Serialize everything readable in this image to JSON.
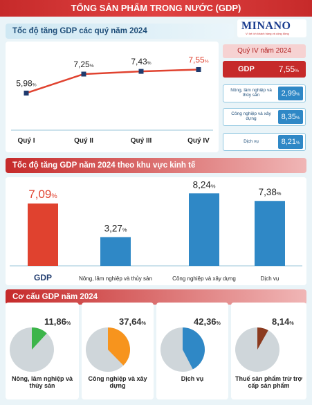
{
  "header": {
    "title": "TỔNG SẢN PHẨM TRONG NƯỚC (GDP)"
  },
  "logo": {
    "name": "MINANO",
    "tagline": "Vì lợi ích khách hàng và cộng đồng"
  },
  "quarter_section": {
    "title": "Tốc độ tăng GDP các quý năm 2024"
  },
  "quarter_panel": {
    "title": "Quý IV năm 2024",
    "gdp_label": "GDP",
    "gdp_value": "7,55",
    "rows": [
      {
        "label": "Nông, lâm nghiệp và thủy sản",
        "value": "2,99"
      },
      {
        "label": "Công nghiệp và xây dựng",
        "value": "8,35"
      },
      {
        "label": "Dịch vụ",
        "value": "8,21"
      }
    ]
  },
  "sector_section": {
    "title": "Tốc độ tăng GDP năm 2024 theo khu vực kinh tế"
  },
  "structure_section": {
    "title": "Cơ cấu GDP năm 2024"
  },
  "percent_sign": "%",
  "colors": {
    "red": "#e0422f",
    "blue": "#2f88c6",
    "line": "#e0422f",
    "marker": "#1f3b6e"
  },
  "chart_data": [
    {
      "type": "line",
      "title": "Tốc độ tăng GDP các quý năm 2024",
      "categories": [
        "Quý I",
        "Quý II",
        "Quý III",
        "Quý IV"
      ],
      "values": [
        5.98,
        7.25,
        7.43,
        7.55
      ],
      "value_labels": [
        "5,98",
        "7,25",
        "7,43",
        "7,55"
      ],
      "ylim": [
        3.5,
        8.5
      ]
    },
    {
      "type": "bar",
      "title": "Tốc độ tăng GDP năm 2024 theo khu vực kinh tế",
      "categories": [
        "GDP",
        "Nông, lâm nghiệp và thủy sản",
        "Công nghiệp và xây dựng",
        "Dịch vụ"
      ],
      "values": [
        7.09,
        3.27,
        8.24,
        7.38
      ],
      "value_labels": [
        "7,09",
        "3,27",
        "8,24",
        "7,38"
      ],
      "bar_colors": [
        "#e0422f",
        "#2f88c6",
        "#2f88c6",
        "#2f88c6"
      ],
      "ylim": [
        0,
        8.5
      ]
    },
    {
      "type": "pie",
      "title": "Cơ cấu GDP năm 2024",
      "slices": [
        {
          "label": "Nông, lâm nghiệp và thủy sản",
          "value": 11.86,
          "value_label": "11,86",
          "color": "#3cb54a"
        },
        {
          "label": "Công nghiệp và xây dựng",
          "value": 37.64,
          "value_label": "37,64",
          "color": "#f7941d"
        },
        {
          "label": "Dịch vụ",
          "value": 42.36,
          "value_label": "42,36",
          "color": "#2f88c6"
        },
        {
          "label": "Thuế sản phẩm trừ trợ cấp sản phẩm",
          "value": 8.14,
          "value_label": "8,14",
          "color": "#8b3a1e"
        }
      ]
    }
  ]
}
